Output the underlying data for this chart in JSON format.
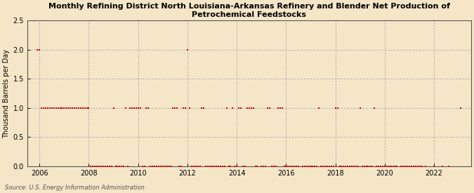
{
  "title": "Monthly Refining District North Louisiana-Arkansas Refinery and Blender Net Production of\nPetrochemical Feedstocks",
  "ylabel": "Thousand Barrels per Day",
  "source": "Source: U.S. Energy Information Administration",
  "background_color": "#f5e6c8",
  "marker_color": "#cc0000",
  "marker_size": 4,
  "xlim_start": 2005.5,
  "xlim_end": 2023.5,
  "ylim": [
    0.0,
    2.5
  ],
  "yticks": [
    0.0,
    0.5,
    1.0,
    1.5,
    2.0,
    2.5
  ],
  "xticks": [
    2006,
    2008,
    2010,
    2012,
    2014,
    2016,
    2018,
    2020,
    2022
  ],
  "data_points": [
    [
      2005.917,
      2.0
    ],
    [
      2006.0,
      2.0
    ],
    [
      2006.083,
      1.0
    ],
    [
      2006.167,
      1.0
    ],
    [
      2006.25,
      1.0
    ],
    [
      2006.333,
      1.0
    ],
    [
      2006.417,
      1.0
    ],
    [
      2006.5,
      1.0
    ],
    [
      2006.583,
      1.0
    ],
    [
      2006.667,
      1.0
    ],
    [
      2006.75,
      1.0
    ],
    [
      2006.833,
      1.0
    ],
    [
      2006.917,
      1.0
    ],
    [
      2007.0,
      1.0
    ],
    [
      2007.083,
      1.0
    ],
    [
      2007.167,
      1.0
    ],
    [
      2007.25,
      1.0
    ],
    [
      2007.333,
      1.0
    ],
    [
      2007.417,
      1.0
    ],
    [
      2007.5,
      1.0
    ],
    [
      2007.583,
      1.0
    ],
    [
      2007.667,
      1.0
    ],
    [
      2007.75,
      1.0
    ],
    [
      2007.833,
      1.0
    ],
    [
      2007.917,
      1.0
    ],
    [
      2008.0,
      1.0
    ],
    [
      2008.083,
      0.0
    ],
    [
      2008.167,
      0.0
    ],
    [
      2008.25,
      0.0
    ],
    [
      2008.333,
      0.0
    ],
    [
      2008.417,
      0.0
    ],
    [
      2008.5,
      0.0
    ],
    [
      2008.583,
      0.0
    ],
    [
      2008.667,
      0.0
    ],
    [
      2008.75,
      0.0
    ],
    [
      2008.833,
      0.0
    ],
    [
      2008.917,
      0.0
    ],
    [
      2009.0,
      1.0
    ],
    [
      2009.083,
      0.0
    ],
    [
      2009.167,
      0.0
    ],
    [
      2009.25,
      0.0
    ],
    [
      2009.333,
      0.0
    ],
    [
      2009.417,
      0.0
    ],
    [
      2009.5,
      1.0
    ],
    [
      2009.583,
      0.0
    ],
    [
      2009.667,
      1.0
    ],
    [
      2009.75,
      1.0
    ],
    [
      2009.833,
      1.0
    ],
    [
      2009.917,
      1.0
    ],
    [
      2010.0,
      1.0
    ],
    [
      2010.083,
      1.0
    ],
    [
      2010.167,
      0.0
    ],
    [
      2010.25,
      0.0
    ],
    [
      2010.333,
      1.0
    ],
    [
      2010.417,
      1.0
    ],
    [
      2010.5,
      0.0
    ],
    [
      2010.583,
      0.0
    ],
    [
      2010.667,
      0.0
    ],
    [
      2010.75,
      0.0
    ],
    [
      2010.833,
      0.0
    ],
    [
      2010.917,
      0.0
    ],
    [
      2011.0,
      0.0
    ],
    [
      2011.083,
      0.0
    ],
    [
      2011.167,
      0.0
    ],
    [
      2011.25,
      0.0
    ],
    [
      2011.333,
      0.0
    ],
    [
      2011.417,
      1.0
    ],
    [
      2011.5,
      1.0
    ],
    [
      2011.583,
      1.0
    ],
    [
      2011.667,
      0.0
    ],
    [
      2011.75,
      0.0
    ],
    [
      2011.833,
      1.0
    ],
    [
      2011.917,
      1.0
    ],
    [
      2012.0,
      2.0
    ],
    [
      2012.083,
      1.0
    ],
    [
      2012.167,
      0.0
    ],
    [
      2012.25,
      0.0
    ],
    [
      2012.333,
      0.0
    ],
    [
      2012.417,
      0.0
    ],
    [
      2012.5,
      0.0
    ],
    [
      2012.583,
      1.0
    ],
    [
      2012.667,
      1.0
    ],
    [
      2012.75,
      0.0
    ],
    [
      2012.833,
      0.0
    ],
    [
      2012.917,
      0.0
    ],
    [
      2013.0,
      0.0
    ],
    [
      2013.083,
      0.0
    ],
    [
      2013.167,
      0.0
    ],
    [
      2013.25,
      0.0
    ],
    [
      2013.333,
      0.0
    ],
    [
      2013.417,
      0.0
    ],
    [
      2013.5,
      0.0
    ],
    [
      2013.583,
      1.0
    ],
    [
      2013.667,
      0.0
    ],
    [
      2013.75,
      0.0
    ],
    [
      2013.833,
      1.0
    ],
    [
      2013.917,
      0.0
    ],
    [
      2014.0,
      0.0
    ],
    [
      2014.083,
      1.0
    ],
    [
      2014.167,
      1.0
    ],
    [
      2014.25,
      0.0
    ],
    [
      2014.333,
      0.0
    ],
    [
      2014.417,
      1.0
    ],
    [
      2014.5,
      1.0
    ],
    [
      2014.583,
      1.0
    ],
    [
      2014.667,
      1.0
    ],
    [
      2014.75,
      0.0
    ],
    [
      2014.833,
      0.0
    ],
    [
      2015.0,
      0.0
    ],
    [
      2015.083,
      0.0
    ],
    [
      2015.167,
      0.0
    ],
    [
      2015.25,
      1.0
    ],
    [
      2015.333,
      1.0
    ],
    [
      2015.417,
      0.0
    ],
    [
      2015.5,
      0.0
    ],
    [
      2015.583,
      0.0
    ],
    [
      2015.667,
      1.0
    ],
    [
      2015.75,
      1.0
    ],
    [
      2015.833,
      1.0
    ],
    [
      2015.917,
      0.0
    ],
    [
      2016.0,
      0.0
    ],
    [
      2016.083,
      0.0
    ],
    [
      2016.167,
      0.0
    ],
    [
      2016.25,
      0.0
    ],
    [
      2016.333,
      0.0
    ],
    [
      2016.417,
      0.0
    ],
    [
      2016.5,
      0.0
    ],
    [
      2016.667,
      0.0
    ],
    [
      2016.75,
      0.0
    ],
    [
      2016.833,
      0.0
    ],
    [
      2016.917,
      0.0
    ],
    [
      2017.0,
      0.0
    ],
    [
      2017.083,
      0.0
    ],
    [
      2017.167,
      0.0
    ],
    [
      2017.25,
      0.0
    ],
    [
      2017.333,
      1.0
    ],
    [
      2017.417,
      0.0
    ],
    [
      2017.5,
      0.0
    ],
    [
      2017.583,
      0.0
    ],
    [
      2017.667,
      0.0
    ],
    [
      2017.75,
      0.0
    ],
    [
      2017.833,
      0.0
    ],
    [
      2017.917,
      0.0
    ],
    [
      2018.0,
      1.0
    ],
    [
      2018.083,
      1.0
    ],
    [
      2018.167,
      0.0
    ],
    [
      2018.25,
      0.0
    ],
    [
      2018.333,
      0.0
    ],
    [
      2018.417,
      0.0
    ],
    [
      2018.5,
      0.0
    ],
    [
      2018.583,
      0.0
    ],
    [
      2018.667,
      0.0
    ],
    [
      2018.75,
      0.0
    ],
    [
      2018.833,
      0.0
    ],
    [
      2018.917,
      0.0
    ],
    [
      2019.0,
      1.0
    ],
    [
      2019.083,
      0.0
    ],
    [
      2019.167,
      0.0
    ],
    [
      2019.25,
      0.0
    ],
    [
      2019.333,
      0.0
    ],
    [
      2019.417,
      0.0
    ],
    [
      2019.5,
      0.0
    ],
    [
      2019.583,
      1.0
    ],
    [
      2019.667,
      0.0
    ],
    [
      2019.75,
      0.0
    ],
    [
      2019.833,
      0.0
    ],
    [
      2019.917,
      0.0
    ],
    [
      2020.0,
      0.0
    ],
    [
      2020.083,
      0.0
    ],
    [
      2020.167,
      0.0
    ],
    [
      2020.25,
      0.0
    ],
    [
      2020.333,
      0.0
    ],
    [
      2020.417,
      0.0
    ],
    [
      2020.5,
      0.0
    ],
    [
      2020.667,
      0.0
    ],
    [
      2020.75,
      0.0
    ],
    [
      2020.833,
      0.0
    ],
    [
      2020.917,
      0.0
    ],
    [
      2021.0,
      0.0
    ],
    [
      2021.083,
      0.0
    ],
    [
      2021.167,
      0.0
    ],
    [
      2021.25,
      0.0
    ],
    [
      2021.333,
      0.0
    ],
    [
      2021.417,
      0.0
    ],
    [
      2021.5,
      0.0
    ],
    [
      2021.667,
      0.0
    ],
    [
      2022.0,
      0.0
    ],
    [
      2022.333,
      0.0
    ],
    [
      2022.583,
      0.0
    ],
    [
      2023.083,
      1.0
    ]
  ]
}
